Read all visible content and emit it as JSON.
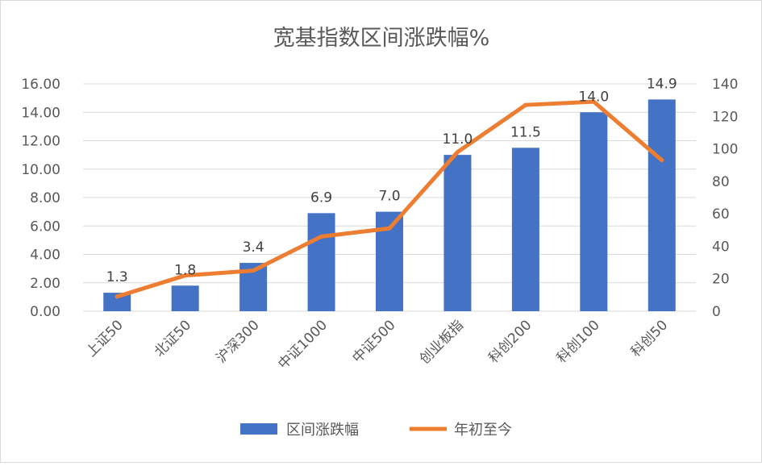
{
  "chart_data": {
    "type": "bar",
    "title": "宽基指数区间涨跌幅%",
    "categories": [
      "上证50",
      "北证50",
      "沪深300",
      "中证1000",
      "中证500",
      "创业板指",
      "科创200",
      "科创100",
      "科创50"
    ],
    "series": [
      {
        "name": "区间涨跌幅",
        "type": "bar",
        "axis": "left",
        "color": "#4472C4",
        "values": [
          1.3,
          1.8,
          3.4,
          6.9,
          7.0,
          11.0,
          11.5,
          14.0,
          14.9
        ],
        "labels": [
          "1.3",
          "1.8",
          "3.4",
          "6.9",
          "7.0",
          "11.0",
          "11.5",
          "14.0",
          "14.9"
        ]
      },
      {
        "name": "年初至今",
        "type": "line",
        "axis": "right",
        "color": "#ED7D31",
        "values": [
          9,
          22,
          25,
          46,
          51,
          98,
          127,
          129,
          93
        ]
      }
    ],
    "y_left": {
      "min": 0,
      "max": 16,
      "ticks": [
        "0.00",
        "2.00",
        "4.00",
        "6.00",
        "8.00",
        "10.00",
        "12.00",
        "14.00",
        "16.00"
      ]
    },
    "y_right": {
      "min": 0,
      "max": 140,
      "ticks": [
        "0",
        "20",
        "40",
        "60",
        "80",
        "100",
        "120",
        "140"
      ]
    },
    "grid": true,
    "legend": "bottom"
  }
}
